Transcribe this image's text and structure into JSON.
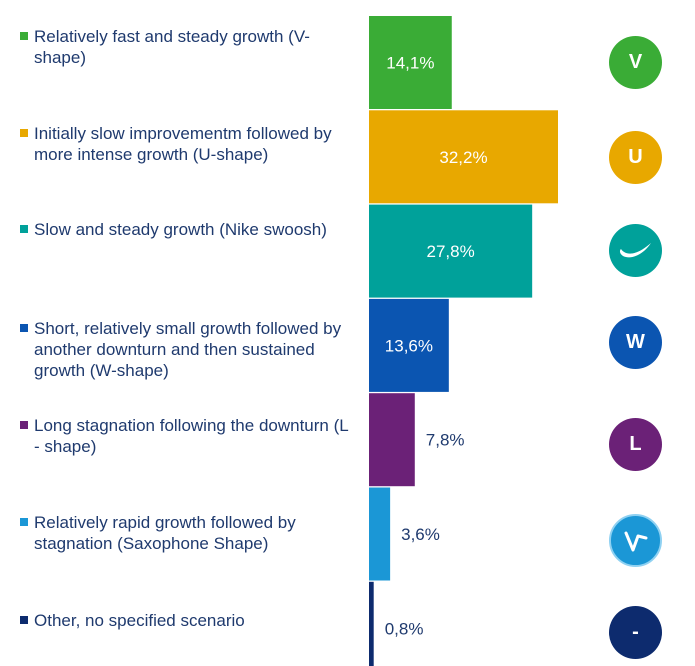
{
  "chart_data": {
    "type": "bar",
    "orientation": "horizontal",
    "value_axis": "hidden",
    "grid": false,
    "legend_position": "left",
    "categories": [
      "Relatively fast and steady growth (V-shape)",
      "Initially slow improvementm followed by more intense growth (U-shape)",
      "Slow and steady growth (Nike swoosh)",
      "Short, relatively small growth followed by another downturn and then sustained growth (W-shape)",
      "Long stagnation following the downturn (L - shape)",
      "Relatively rapid growth followed by stagnation (Saxophone Shape)",
      "Other, no specified scenario"
    ],
    "values": [
      14.1,
      32.2,
      27.8,
      13.6,
      7.8,
      3.6,
      0.8
    ],
    "value_labels": [
      "14,1%",
      "32,2%",
      "27,8%",
      "13,6%",
      "7,8%",
      "3,6%",
      "0,8%"
    ],
    "colors": [
      "#3aac36",
      "#e8a800",
      "#00a19a",
      "#0b55b1",
      "#6b2177",
      "#1b97d6",
      "#0d2b6e"
    ],
    "badges": [
      {
        "symbol": "V",
        "icon": "v-shape-icon"
      },
      {
        "symbol": "U",
        "icon": "u-shape-icon"
      },
      {
        "symbol": "",
        "icon": "swoosh-icon"
      },
      {
        "symbol": "W",
        "icon": "w-shape-icon"
      },
      {
        "symbol": "L",
        "icon": "l-shape-icon"
      },
      {
        "symbol": "",
        "icon": "saxophone-icon"
      },
      {
        "symbol": "-",
        "icon": "dash-icon"
      }
    ],
    "label_colors": {
      "inside": "#ffffff",
      "outside": "#1f3a6e"
    }
  }
}
